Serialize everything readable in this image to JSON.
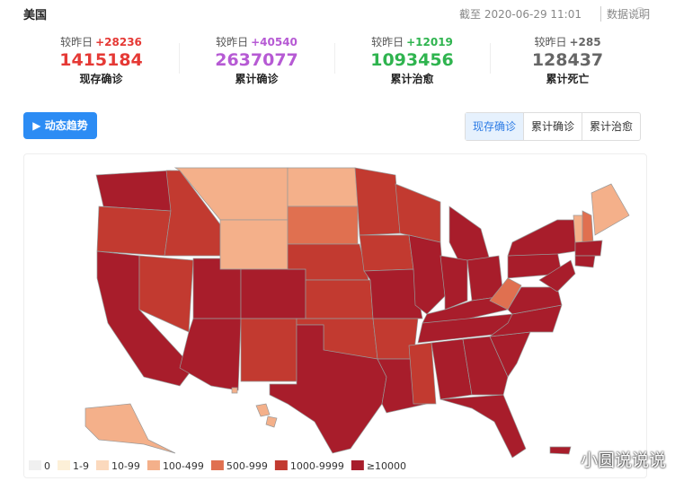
{
  "header": {
    "title": "美国",
    "timestamp": "截至 2020-06-29 11:01",
    "note": "数据说明"
  },
  "stats": [
    {
      "compare": "较昨日",
      "delta": "+28236",
      "value": "1415184",
      "label": "现存确诊",
      "color": "#e53935"
    },
    {
      "compare": "较昨日",
      "delta": "+40540",
      "value": "2637077",
      "label": "累计确诊",
      "color": "#b65ad4"
    },
    {
      "compare": "较昨日",
      "delta": "+12019",
      "value": "1093456",
      "label": "累计治愈",
      "color": "#2fb44f"
    },
    {
      "compare": "较昨日",
      "delta": "+285",
      "value": "128437",
      "label": "累计死亡",
      "color": "#666666"
    }
  ],
  "trend_button": "动态趋势",
  "tabs": [
    "现存确诊",
    "累计确诊",
    "累计治愈"
  ],
  "legend": [
    {
      "label": "0",
      "color": "#f0f0f0"
    },
    {
      "label": "1-9",
      "color": "#fdf0d8"
    },
    {
      "label": "10-99",
      "color": "#fbd9bd"
    },
    {
      "label": "100-499",
      "color": "#f4b08a"
    },
    {
      "label": "500-999",
      "color": "#e07050"
    },
    {
      "label": "1000-9999",
      "color": "#c23a30"
    },
    {
      "label": "≥10000",
      "color": "#a81d2b"
    }
  ],
  "watermark": "小圆说说说"
}
